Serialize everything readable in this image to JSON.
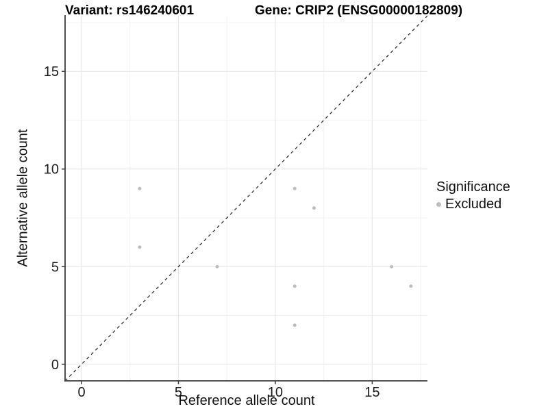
{
  "titles": {
    "variant": "Variant: rs146240601",
    "gene": "Gene: CRIP2 (ENSG00000182809)"
  },
  "axes": {
    "x": {
      "label": "Reference allele count",
      "ticks": [
        0,
        5,
        10,
        15
      ],
      "minor_ticks": [
        2.5,
        7.5,
        12.5,
        17.5
      ]
    },
    "y": {
      "label": "Alternative allele count",
      "ticks": [
        0,
        5,
        10,
        15
      ],
      "minor_ticks": [
        2.5,
        7.5,
        12.5,
        17.5
      ]
    }
  },
  "legend": {
    "title": "Significance",
    "items": [
      {
        "label": "Excluded",
        "color": "#bdbdbd"
      }
    ]
  },
  "colors": {
    "point": "#bdbdbd",
    "major_grid": "#e4e4e4",
    "minor_grid": "#f1f1f1",
    "axis_line": "#3a3a3a",
    "tick_text": "#1a1a1a",
    "identity_line": "#1f1f1f",
    "background": "#ffffff"
  },
  "chart_data": {
    "type": "scatter",
    "title": "Variant: rs146240601 | Gene: CRIP2 (ENSG00000182809)",
    "xlabel": "Reference allele count",
    "ylabel": "Alternative allele count",
    "xlim": [
      -0.85,
      17.85
    ],
    "ylim": [
      -0.85,
      17.85
    ],
    "grid": true,
    "legend_position": "right",
    "identity_line": {
      "style": "dashed",
      "from": [
        -0.85,
        -0.85
      ],
      "to": [
        17.85,
        17.85
      ]
    },
    "series": [
      {
        "name": "Excluded",
        "color": "#bdbdbd",
        "points": [
          {
            "x": 3,
            "y": 6,
            "significance": "Excluded"
          },
          {
            "x": 3,
            "y": 9,
            "significance": "Excluded"
          },
          {
            "x": 7,
            "y": 5,
            "significance": "Excluded"
          },
          {
            "x": 11,
            "y": 2,
            "significance": "Excluded"
          },
          {
            "x": 11,
            "y": 4,
            "significance": "Excluded"
          },
          {
            "x": 11,
            "y": 9,
            "significance": "Excluded"
          },
          {
            "x": 12,
            "y": 8,
            "significance": "Excluded"
          },
          {
            "x": 16,
            "y": 5,
            "significance": "Excluded"
          },
          {
            "x": 17,
            "y": 4,
            "significance": "Excluded"
          }
        ]
      }
    ]
  }
}
